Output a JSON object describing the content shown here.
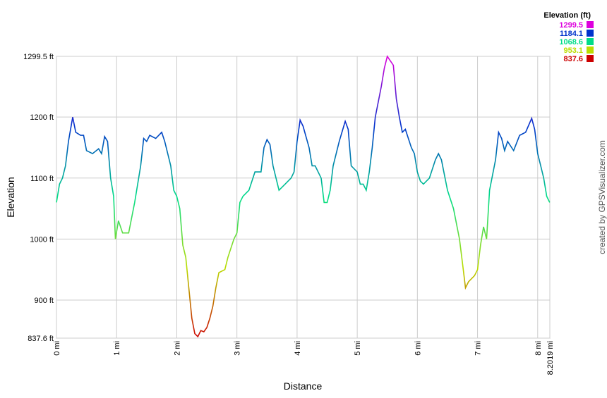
{
  "chart_data": {
    "type": "line",
    "x_label": "Distance",
    "y_label": "Elevation",
    "credit": "created by GPSVisualizer.com",
    "legend_title": "Elevation (ft)",
    "legend": [
      {
        "value": 1299.5,
        "color": "#dd00dd"
      },
      {
        "value": 1184.1,
        "color": "#0033cc"
      },
      {
        "value": 1068.6,
        "color": "#00dd88"
      },
      {
        "value": 953.1,
        "color": "#bbdd00"
      },
      {
        "value": 837.6,
        "color": "#cc0000"
      }
    ],
    "xlim": [
      0,
      8.2019
    ],
    "ylim": [
      837.6,
      1299.5
    ],
    "xticks": [
      {
        "value": 0,
        "label": "0 mi"
      },
      {
        "value": 1,
        "label": "1 mi"
      },
      {
        "value": 2,
        "label": "2 mi"
      },
      {
        "value": 3,
        "label": "3 mi"
      },
      {
        "value": 4,
        "label": "4 mi"
      },
      {
        "value": 5,
        "label": "5 mi"
      },
      {
        "value": 6,
        "label": "6 mi"
      },
      {
        "value": 7,
        "label": "7 mi"
      },
      {
        "value": 8,
        "label": "8 mi"
      },
      {
        "value": 8.2019,
        "label": "8.2019 mi"
      }
    ],
    "yticks": [
      {
        "value": 837.6,
        "label": "837.6 ft"
      },
      {
        "value": 900,
        "label": "900 ft"
      },
      {
        "value": 1000,
        "label": "1000 ft"
      },
      {
        "value": 1100,
        "label": "1100 ft"
      },
      {
        "value": 1200,
        "label": "1200 ft"
      },
      {
        "value": 1299.5,
        "label": "1299.5 ft"
      }
    ],
    "grid": true,
    "x": [
      0,
      0.05,
      0.1,
      0.15,
      0.2,
      0.27,
      0.32,
      0.4,
      0.45,
      0.5,
      0.6,
      0.7,
      0.75,
      0.8,
      0.85,
      0.9,
      0.95,
      0.98,
      1.03,
      1.1,
      1.2,
      1.3,
      1.4,
      1.45,
      1.5,
      1.55,
      1.65,
      1.75,
      1.8,
      1.9,
      1.95,
      2.0,
      2.05,
      2.1,
      2.15,
      2.2,
      2.25,
      2.3,
      2.35,
      2.4,
      2.45,
      2.5,
      2.55,
      2.6,
      2.65,
      2.7,
      2.8,
      2.85,
      2.95,
      3.0,
      3.05,
      3.1,
      3.2,
      3.3,
      3.4,
      3.45,
      3.5,
      3.55,
      3.6,
      3.7,
      3.8,
      3.9,
      3.95,
      4.0,
      4.05,
      4.1,
      4.2,
      4.25,
      4.3,
      4.4,
      4.45,
      4.5,
      4.55,
      4.6,
      4.7,
      4.8,
      4.85,
      4.9,
      5.0,
      5.05,
      5.1,
      5.15,
      5.2,
      5.25,
      5.3,
      5.4,
      5.45,
      5.5,
      5.6,
      5.65,
      5.7,
      5.75,
      5.8,
      5.9,
      5.95,
      6.0,
      6.05,
      6.1,
      6.2,
      6.3,
      6.35,
      6.4,
      6.5,
      6.6,
      6.7,
      6.75,
      6.8,
      6.85,
      6.95,
      7.0,
      7.05,
      7.1,
      7.15,
      7.2,
      7.3,
      7.35,
      7.4,
      7.45,
      7.5,
      7.6,
      7.7,
      7.8,
      7.9,
      7.95,
      8.0,
      8.05,
      8.1,
      8.15,
      8.2
    ],
    "values": [
      1060,
      1090,
      1100,
      1120,
      1160,
      1200,
      1175,
      1170,
      1170,
      1145,
      1140,
      1148,
      1140,
      1168,
      1160,
      1100,
      1070,
      1000,
      1030,
      1010,
      1010,
      1060,
      1120,
      1165,
      1160,
      1170,
      1165,
      1175,
      1160,
      1120,
      1080,
      1070,
      1050,
      990,
      970,
      920,
      870,
      845,
      840,
      850,
      848,
      855,
      870,
      890,
      920,
      945,
      950,
      970,
      1000,
      1010,
      1060,
      1070,
      1080,
      1110,
      1110,
      1150,
      1163,
      1155,
      1120,
      1080,
      1090,
      1100,
      1110,
      1160,
      1195,
      1185,
      1150,
      1120,
      1120,
      1100,
      1060,
      1060,
      1080,
      1120,
      1160,
      1193,
      1180,
      1120,
      1110,
      1090,
      1090,
      1080,
      1110,
      1150,
      1200,
      1250,
      1280,
      1299.5,
      1285,
      1230,
      1200,
      1175,
      1180,
      1150,
      1140,
      1110,
      1095,
      1090,
      1100,
      1130,
      1140,
      1130,
      1080,
      1050,
      1000,
      960,
      920,
      930,
      940,
      950,
      990,
      1020,
      1000,
      1080,
      1130,
      1175,
      1165,
      1145,
      1160,
      1145,
      1170,
      1175,
      1198,
      1180,
      1140,
      1120,
      1100,
      1070,
      1060
    ]
  }
}
